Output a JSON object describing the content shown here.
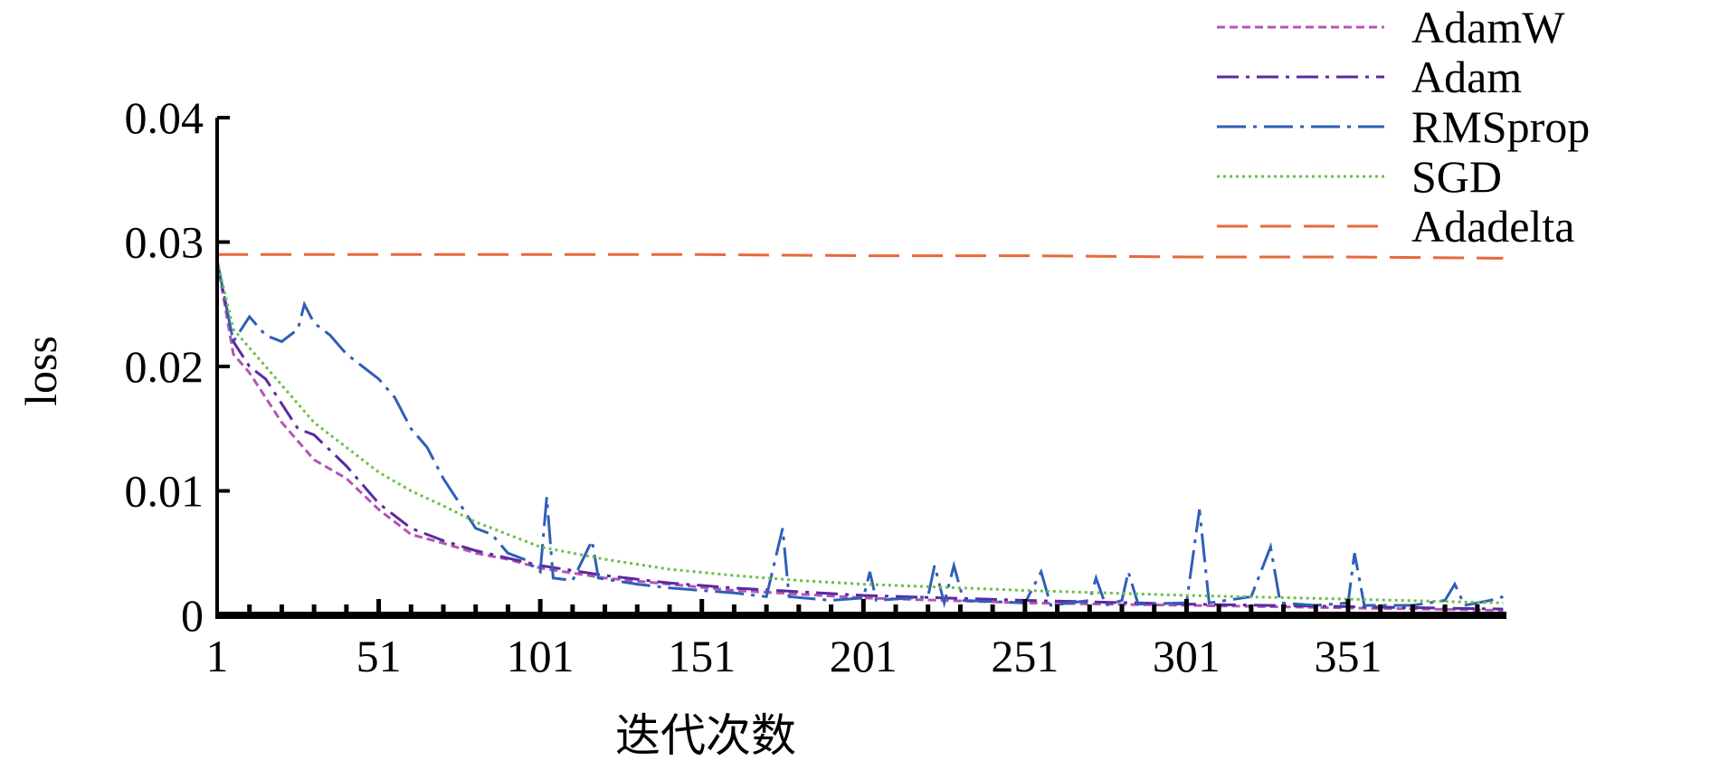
{
  "chart_data": {
    "type": "line",
    "title": "",
    "xlabel": "迭代次数",
    "ylabel": "loss",
    "xlim": [
      1,
      400
    ],
    "ylim": [
      0,
      0.04
    ],
    "grid": false,
    "legend_position": "top-right",
    "x_ticks": [
      1,
      51,
      101,
      151,
      201,
      251,
      301,
      351
    ],
    "x_tick_labels": [
      "1",
      "51",
      "101",
      "151",
      "201",
      "251",
      "301",
      "351"
    ],
    "y_ticks": [
      0,
      0.01,
      0.02,
      0.03,
      0.04
    ],
    "y_tick_labels": [
      "0",
      "0.01",
      "0.02",
      "0.03",
      "0.04"
    ],
    "series": [
      {
        "name": "AdamW",
        "color": "#b455b4",
        "dash": "short-dash",
        "points": [
          [
            1,
            0.0285
          ],
          [
            6,
            0.021
          ],
          [
            11,
            0.0195
          ],
          [
            16,
            0.0175
          ],
          [
            21,
            0.0155
          ],
          [
            26,
            0.014
          ],
          [
            31,
            0.0125
          ],
          [
            41,
            0.011
          ],
          [
            51,
            0.0085
          ],
          [
            61,
            0.0065
          ],
          [
            71,
            0.0058
          ],
          [
            81,
            0.005
          ],
          [
            91,
            0.0045
          ],
          [
            101,
            0.0038
          ],
          [
            121,
            0.003
          ],
          [
            141,
            0.0025
          ],
          [
            161,
            0.002
          ],
          [
            181,
            0.0017
          ],
          [
            201,
            0.0014
          ],
          [
            251,
            0.001
          ],
          [
            301,
            0.0008
          ],
          [
            351,
            0.0006
          ],
          [
            399,
            0.0004
          ]
        ]
      },
      {
        "name": "Adam",
        "color": "#5a2aa0",
        "dash": "dash-dot",
        "points": [
          [
            1,
            0.0285
          ],
          [
            6,
            0.022
          ],
          [
            11,
            0.02
          ],
          [
            16,
            0.019
          ],
          [
            21,
            0.017
          ],
          [
            26,
            0.015
          ],
          [
            31,
            0.0145
          ],
          [
            41,
            0.012
          ],
          [
            51,
            0.009
          ],
          [
            61,
            0.007
          ],
          [
            71,
            0.006
          ],
          [
            81,
            0.0052
          ],
          [
            91,
            0.0046
          ],
          [
            101,
            0.004
          ],
          [
            121,
            0.0032
          ],
          [
            141,
            0.0026
          ],
          [
            161,
            0.0022
          ],
          [
            181,
            0.0019
          ],
          [
            201,
            0.0016
          ],
          [
            251,
            0.0012
          ],
          [
            301,
            0.0009
          ],
          [
            351,
            0.0007
          ],
          [
            399,
            0.0005
          ]
        ]
      },
      {
        "name": "RMSprop",
        "color": "#2f5fb8",
        "dash": "long-dash-dot",
        "points": [
          [
            1,
            0.0285
          ],
          [
            6,
            0.022
          ],
          [
            11,
            0.024
          ],
          [
            16,
            0.0225
          ],
          [
            21,
            0.022
          ],
          [
            26,
            0.023
          ],
          [
            28,
            0.025
          ],
          [
            31,
            0.0235
          ],
          [
            36,
            0.0225
          ],
          [
            41,
            0.021
          ],
          [
            46,
            0.02
          ],
          [
            51,
            0.019
          ],
          [
            56,
            0.0175
          ],
          [
            61,
            0.015
          ],
          [
            66,
            0.0135
          ],
          [
            71,
            0.011
          ],
          [
            76,
            0.009
          ],
          [
            81,
            0.007
          ],
          [
            86,
            0.0065
          ],
          [
            91,
            0.005
          ],
          [
            96,
            0.0045
          ],
          [
            101,
            0.0035
          ],
          [
            103,
            0.0095
          ],
          [
            105,
            0.003
          ],
          [
            111,
            0.0028
          ],
          [
            117,
            0.006
          ],
          [
            119,
            0.003
          ],
          [
            131,
            0.0025
          ],
          [
            141,
            0.0022
          ],
          [
            151,
            0.002
          ],
          [
            161,
            0.0018
          ],
          [
            171,
            0.0015
          ],
          [
            176,
            0.007
          ],
          [
            178,
            0.0015
          ],
          [
            191,
            0.0012
          ],
          [
            201,
            0.0014
          ],
          [
            203,
            0.0035
          ],
          [
            205,
            0.0012
          ],
          [
            221,
            0.0015
          ],
          [
            223,
            0.004
          ],
          [
            226,
            0.001
          ],
          [
            229,
            0.004
          ],
          [
            232,
            0.0012
          ],
          [
            251,
            0.001
          ],
          [
            256,
            0.0035
          ],
          [
            259,
            0.0008
          ],
          [
            271,
            0.0012
          ],
          [
            273,
            0.003
          ],
          [
            276,
            0.0008
          ],
          [
            281,
            0.0012
          ],
          [
            283,
            0.0035
          ],
          [
            286,
            0.0009
          ],
          [
            301,
            0.001
          ],
          [
            305,
            0.0085
          ],
          [
            308,
            0.001
          ],
          [
            321,
            0.0015
          ],
          [
            327,
            0.0055
          ],
          [
            330,
            0.001
          ],
          [
            341,
            0.0008
          ],
          [
            351,
            0.001
          ],
          [
            353,
            0.005
          ],
          [
            356,
            0.0008
          ],
          [
            371,
            0.0008
          ],
          [
            381,
            0.0012
          ],
          [
            384,
            0.0025
          ],
          [
            387,
            0.0008
          ],
          [
            395,
            0.0012
          ],
          [
            399,
            0.0015
          ]
        ]
      },
      {
        "name": "SGD",
        "color": "#6bbf4a",
        "dash": "dot",
        "points": [
          [
            1,
            0.0285
          ],
          [
            6,
            0.023
          ],
          [
            11,
            0.0215
          ],
          [
            16,
            0.02
          ],
          [
            21,
            0.0185
          ],
          [
            26,
            0.017
          ],
          [
            31,
            0.0155
          ],
          [
            41,
            0.0135
          ],
          [
            51,
            0.0115
          ],
          [
            61,
            0.01
          ],
          [
            71,
            0.0088
          ],
          [
            81,
            0.0075
          ],
          [
            91,
            0.0065
          ],
          [
            101,
            0.0055
          ],
          [
            121,
            0.0045
          ],
          [
            141,
            0.0037
          ],
          [
            161,
            0.0032
          ],
          [
            181,
            0.0028
          ],
          [
            201,
            0.0025
          ],
          [
            251,
            0.002
          ],
          [
            301,
            0.0016
          ],
          [
            351,
            0.0013
          ],
          [
            399,
            0.001
          ]
        ]
      },
      {
        "name": "Adadelta",
        "color": "#e8683a",
        "dash": "long-dash",
        "points": [
          [
            1,
            0.029
          ],
          [
            51,
            0.029
          ],
          [
            101,
            0.029
          ],
          [
            151,
            0.029
          ],
          [
            201,
            0.0289
          ],
          [
            251,
            0.0289
          ],
          [
            301,
            0.0288
          ],
          [
            351,
            0.0288
          ],
          [
            399,
            0.0287
          ]
        ]
      }
    ]
  }
}
